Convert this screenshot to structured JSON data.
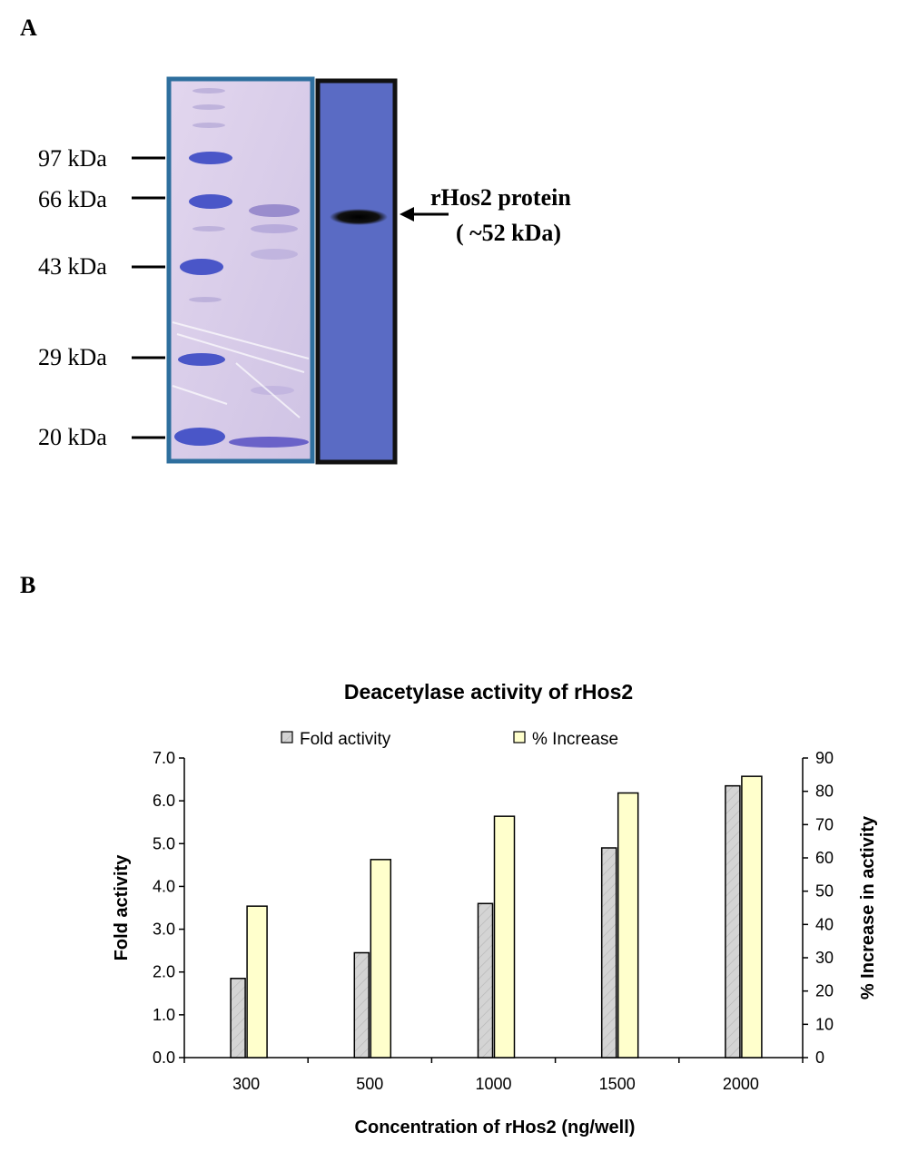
{
  "panel_a": {
    "label": "A",
    "markers": [
      "97 kDa",
      "66 kDa",
      "43 kDa",
      "29 kDa",
      "20 kDa"
    ],
    "annotation_line1": "rHos2 protein",
    "annotation_line2": "( ~52 kDa)",
    "colors": {
      "gel_border": "#2e6f9e",
      "blot_border": "#111111",
      "blot_fill": "#5a6bc4",
      "gel_fill": "#d6cbe8"
    }
  },
  "panel_b": {
    "label": "B"
  },
  "chart_data": {
    "type": "bar",
    "title": "Deacetylase activity of rHos2",
    "xlabel": "Concentration of rHos2 (ng/well)",
    "ylabel": "Fold activity",
    "y2label": "% Increase in activity",
    "categories": [
      "300",
      "500",
      "1000",
      "1500",
      "2000"
    ],
    "ylim": [
      0,
      7
    ],
    "y2lim": [
      0,
      90
    ],
    "yticks": [
      "0.0",
      "1.0",
      "2.0",
      "3.0",
      "4.0",
      "5.0",
      "6.0",
      "7.0"
    ],
    "y2ticks": [
      "0",
      "10",
      "20",
      "30",
      "40",
      "50",
      "60",
      "70",
      "80",
      "90"
    ],
    "legend_position": "top",
    "grid": false,
    "series": [
      {
        "name": "Fold activity",
        "axis": "left",
        "values": [
          1.85,
          2.45,
          3.6,
          4.9,
          6.35
        ],
        "color": "#d4d4d4"
      },
      {
        "name": "% Increase",
        "axis": "right",
        "values": [
          45.5,
          59.5,
          72.5,
          79.5,
          84.5
        ],
        "color": "#ffffcc"
      }
    ]
  }
}
